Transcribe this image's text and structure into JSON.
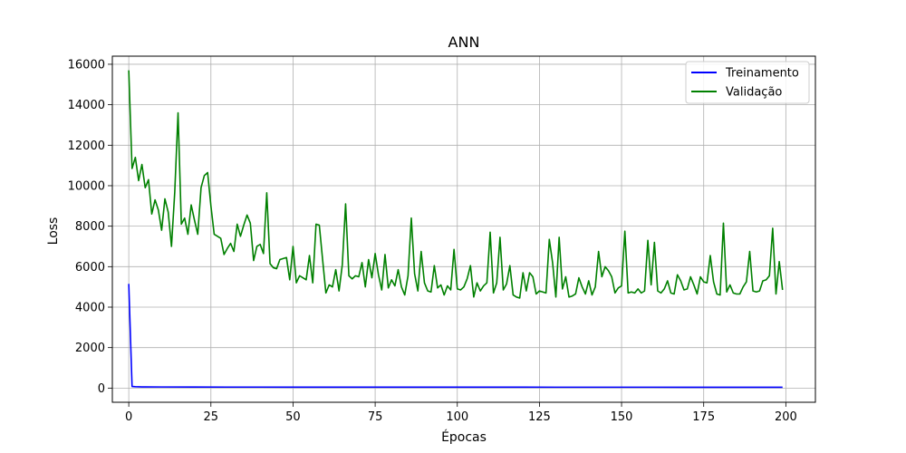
{
  "chart_data": {
    "type": "line",
    "title": "ANN",
    "xlabel": "Épocas",
    "ylabel": "Loss",
    "xlim": [
      -5,
      209
    ],
    "ylim": [
      -700,
      16400
    ],
    "xticks": [
      0,
      25,
      50,
      75,
      100,
      125,
      150,
      175,
      200
    ],
    "yticks": [
      0,
      2000,
      4000,
      6000,
      8000,
      10000,
      12000,
      14000,
      16000
    ],
    "xtick_labels": [
      "0",
      "25",
      "50",
      "75",
      "100",
      "125",
      "150",
      "175",
      "200"
    ],
    "ytick_labels": [
      "0",
      "2000",
      "4000",
      "6000",
      "8000",
      "10000",
      "12000",
      "14000",
      "16000"
    ],
    "grid": true,
    "legend_position": "top-right",
    "series": [
      {
        "name": "Treinamento",
        "color": "#0000ff",
        "x": [
          0,
          1,
          2,
          3,
          4,
          5,
          10,
          20,
          30,
          40,
          50,
          60,
          70,
          80,
          90,
          100,
          110,
          120,
          130,
          140,
          150,
          160,
          170,
          180,
          190,
          199
        ],
        "y": [
          5150,
          80,
          70,
          65,
          60,
          58,
          55,
          52,
          50,
          50,
          48,
          47,
          47,
          46,
          46,
          45,
          45,
          45,
          44,
          44,
          44,
          44,
          43,
          43,
          43,
          43
        ]
      },
      {
        "name": "Validação",
        "color": "#008000",
        "x": [
          0,
          1,
          2,
          3,
          4,
          5,
          6,
          7,
          8,
          9,
          10,
          11,
          12,
          13,
          14,
          15,
          16,
          17,
          18,
          19,
          20,
          21,
          22,
          23,
          24,
          25,
          26,
          27,
          28,
          29,
          30,
          31,
          32,
          33,
          34,
          35,
          36,
          37,
          38,
          39,
          40,
          41,
          42,
          43,
          44,
          45,
          46,
          47,
          48,
          49,
          50,
          51,
          52,
          53,
          54,
          55,
          56,
          57,
          58,
          59,
          60,
          61,
          62,
          63,
          64,
          65,
          66,
          67,
          68,
          69,
          70,
          71,
          72,
          73,
          74,
          75,
          76,
          77,
          78,
          79,
          80,
          81,
          82,
          83,
          84,
          85,
          86,
          87,
          88,
          89,
          90,
          91,
          92,
          93,
          94,
          95,
          96,
          97,
          98,
          99,
          100,
          101,
          102,
          103,
          104,
          105,
          106,
          107,
          108,
          109,
          110,
          111,
          112,
          113,
          114,
          115,
          116,
          117,
          118,
          119,
          120,
          121,
          122,
          123,
          124,
          125,
          126,
          127,
          128,
          129,
          130,
          131,
          132,
          133,
          134,
          135,
          136,
          137,
          138,
          139,
          140,
          141,
          142,
          143,
          144,
          145,
          146,
          147,
          148,
          149,
          150,
          151,
          152,
          153,
          154,
          155,
          156,
          157,
          158,
          159,
          160,
          161,
          162,
          163,
          164,
          165,
          166,
          167,
          168,
          169,
          170,
          171,
          172,
          173,
          174,
          175,
          176,
          177,
          178,
          179,
          180,
          181,
          182,
          183,
          184,
          185,
          186,
          187,
          188,
          189,
          190,
          191,
          192,
          193,
          194,
          195,
          196,
          197,
          198,
          199
        ],
        "y": [
          15700,
          10850,
          11400,
          10250,
          11050,
          9900,
          10300,
          8600,
          9300,
          8800,
          7800,
          9350,
          8700,
          7000,
          9700,
          13600,
          8100,
          8400,
          7600,
          9050,
          8300,
          7600,
          9900,
          10500,
          10650,
          9000,
          7600,
          7500,
          7400,
          6600,
          6900,
          7150,
          6750,
          8100,
          7500,
          8050,
          8550,
          8150,
          6300,
          7000,
          7100,
          6650,
          9650,
          6150,
          5950,
          5900,
          6350,
          6400,
          6450,
          5350,
          7000,
          5200,
          5550,
          5450,
          5350,
          6550,
          5200,
          8100,
          8050,
          6350,
          4700,
          5100,
          5000,
          5850,
          4800,
          6100,
          9100,
          5550,
          5400,
          5550,
          5500,
          6200,
          5000,
          6350,
          5450,
          6650,
          5600,
          4850,
          6600,
          4950,
          5350,
          5050,
          5850,
          5000,
          4600,
          5550,
          8400,
          5650,
          4800,
          6750,
          5200,
          4800,
          4750,
          6050,
          4950,
          5100,
          4600,
          5050,
          4850,
          6850,
          4900,
          4850,
          5000,
          5400,
          6050,
          4500,
          5200,
          4800,
          5050,
          5200,
          7700,
          4700,
          5200,
          7450,
          4850,
          5150,
          6050,
          4600,
          4500,
          4450,
          5700,
          4800,
          5700,
          5500,
          4650,
          4800,
          4750,
          4700,
          7350,
          6200,
          4500,
          7450,
          4900,
          5500,
          4500,
          4550,
          4650,
          5450,
          5000,
          4650,
          5300,
          4600,
          5000,
          6750,
          5500,
          6000,
          5800,
          5500,
          4700,
          4950,
          5050,
          7750,
          4700,
          4750,
          4700,
          4900,
          4700,
          4800,
          7300,
          5100,
          7200,
          4800,
          4700,
          4900,
          5300,
          4700,
          4650,
          5600,
          5300,
          4850,
          4900,
          5500,
          5100,
          4650,
          5500,
          5250,
          5200,
          6550,
          5250,
          4650,
          4600,
          8150,
          4750,
          5100,
          4700,
          4650,
          4650,
          5000,
          5250,
          6750,
          4800,
          4750,
          4800,
          5300,
          5350,
          5550,
          7900,
          4650,
          6250,
          4850
        ]
      }
    ]
  }
}
